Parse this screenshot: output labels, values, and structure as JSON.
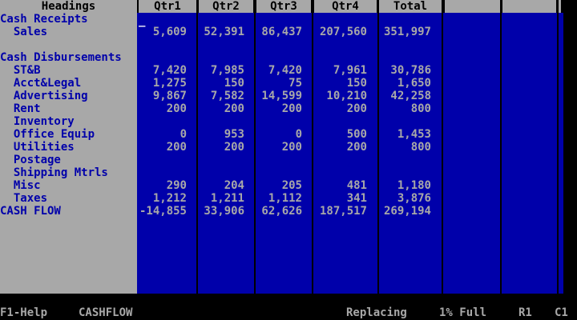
{
  "header": {
    "headings": "Headings",
    "columns": [
      "Qtr1",
      "Qtr2",
      "Qtr3",
      "Qtr4",
      "Total"
    ]
  },
  "rows": [
    {
      "label": "Cash Receipts",
      "values": [
        "",
        "",
        "",
        "",
        ""
      ]
    },
    {
      "label": "  Sales",
      "values": [
        "5,609",
        "52,391",
        "86,437",
        "207,560",
        "351,997"
      ]
    },
    {
      "label": "",
      "values": [
        "",
        "",
        "",
        "",
        ""
      ]
    },
    {
      "label": "Cash Disbursements",
      "values": [
        "",
        "",
        "",
        "",
        ""
      ]
    },
    {
      "label": "  ST&B",
      "values": [
        "7,420",
        "7,985",
        "7,420",
        "7,961",
        "30,786"
      ]
    },
    {
      "label": "  Acct&Legal",
      "values": [
        "1,275",
        "150",
        "75",
        "150",
        "1,650"
      ]
    },
    {
      "label": "  Advertising",
      "values": [
        "9,867",
        "7,582",
        "14,599",
        "10,210",
        "42,258"
      ]
    },
    {
      "label": "  Rent",
      "values": [
        "200",
        "200",
        "200",
        "200",
        "800"
      ]
    },
    {
      "label": "  Inventory",
      "values": [
        "",
        "",
        "",
        "",
        ""
      ]
    },
    {
      "label": "  Office Equip",
      "values": [
        "0",
        "953",
        "0",
        "500",
        "1,453"
      ]
    },
    {
      "label": "  Utilities",
      "values": [
        "200",
        "200",
        "200",
        "200",
        "800"
      ]
    },
    {
      "label": "  Postage",
      "values": [
        "",
        "",
        "",
        "",
        ""
      ]
    },
    {
      "label": "  Shipping Mtrls",
      "values": [
        "",
        "",
        "",
        "",
        ""
      ]
    },
    {
      "label": "  Misc",
      "values": [
        "290",
        "204",
        "205",
        "481",
        "1,180"
      ]
    },
    {
      "label": "  Taxes",
      "values": [
        "1,212",
        "1,211",
        "1,112",
        "341",
        "3,876"
      ]
    },
    {
      "label": "CASH FLOW",
      "values": [
        "-14,855",
        "33,906",
        "62,626",
        "187,517",
        "269,194"
      ]
    }
  ],
  "status": {
    "help": "F1-Help",
    "file": "CASHFLOW",
    "mode": "Replacing",
    "full": "1% Full",
    "row": "R1",
    "col": "C1"
  },
  "cursor_glyph": "_",
  "colors": {
    "background": "#000000",
    "panel": "#a8a8a8",
    "grid": "#0000aa",
    "text_light": "#a8a8a8",
    "text_blue": "#0000aa"
  }
}
